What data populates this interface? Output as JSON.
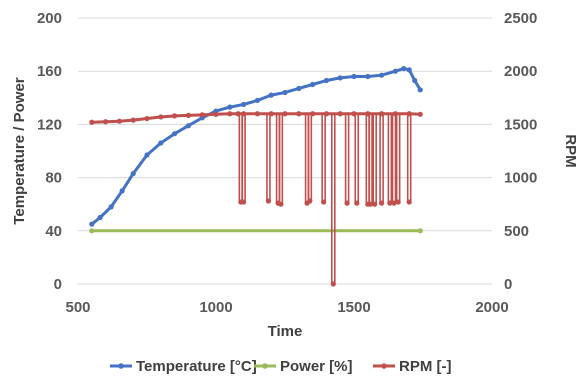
{
  "chart_data": {
    "type": "line",
    "xlabel": "Time",
    "ylabel_left": "Temperature / Power",
    "ylabel_right": "RPM",
    "xlim": [
      500,
      2000
    ],
    "ylim_left": [
      0,
      200
    ],
    "ylim_right": [
      0,
      2500
    ],
    "x_ticks": [
      500,
      1000,
      1500,
      2000
    ],
    "y_left_ticks": [
      0,
      40,
      80,
      120,
      160,
      200
    ],
    "y_right_ticks": [
      0,
      500,
      1000,
      1500,
      2000,
      2500
    ],
    "grid": "horizontal",
    "legend_position": "bottom",
    "series": [
      {
        "name": "Temperature [°C]",
        "axis": "left",
        "color": "#4472c4",
        "x": [
          550,
          580,
          620,
          660,
          700,
          750,
          800,
          850,
          900,
          950,
          1000,
          1050,
          1100,
          1150,
          1200,
          1250,
          1300,
          1350,
          1400,
          1450,
          1500,
          1550,
          1600,
          1650,
          1680,
          1700,
          1720,
          1740
        ],
        "y": [
          45,
          50,
          58,
          70,
          83,
          97,
          106,
          113,
          119,
          125,
          130,
          133,
          135,
          138,
          142,
          144,
          147,
          150,
          153,
          155,
          156,
          156,
          157,
          160,
          162,
          161,
          153,
          146
        ]
      },
      {
        "name": "Power [%]",
        "axis": "left",
        "color": "#9bbb59",
        "x": [
          550,
          1740
        ],
        "y": [
          40,
          40
        ]
      },
      {
        "name": "RPM [-]",
        "axis": "right",
        "color": "#c0504d",
        "x": [
          550,
          600,
          650,
          700,
          750,
          800,
          850,
          900,
          950,
          1000,
          1050,
          1080,
          1100,
          1150,
          1200,
          1250,
          1300,
          1350,
          1400,
          1450,
          1500,
          1550,
          1600,
          1650,
          1700,
          1740
        ],
        "y": [
          1520,
          1525,
          1530,
          1540,
          1555,
          1570,
          1580,
          1585,
          1590,
          1595,
          1600,
          1600,
          1600,
          1600,
          1600,
          1600,
          1600,
          1600,
          1600,
          1600,
          1600,
          1600,
          1600,
          1600,
          1600,
          1595
        ],
        "dips": [
          {
            "x": 1090,
            "y": 770
          },
          {
            "x": 1100,
            "y": 770
          },
          {
            "x": 1190,
            "y": 780
          },
          {
            "x": 1225,
            "y": 760
          },
          {
            "x": 1235,
            "y": 750
          },
          {
            "x": 1330,
            "y": 760
          },
          {
            "x": 1340,
            "y": 780
          },
          {
            "x": 1390,
            "y": 770
          },
          {
            "x": 1425,
            "y": 0
          },
          {
            "x": 1475,
            "y": 760
          },
          {
            "x": 1510,
            "y": 760
          },
          {
            "x": 1550,
            "y": 750
          },
          {
            "x": 1560,
            "y": 750
          },
          {
            "x": 1575,
            "y": 750
          },
          {
            "x": 1600,
            "y": 760
          },
          {
            "x": 1630,
            "y": 760
          },
          {
            "x": 1645,
            "y": 760
          },
          {
            "x": 1660,
            "y": 770
          },
          {
            "x": 1700,
            "y": 770
          }
        ]
      }
    ]
  }
}
